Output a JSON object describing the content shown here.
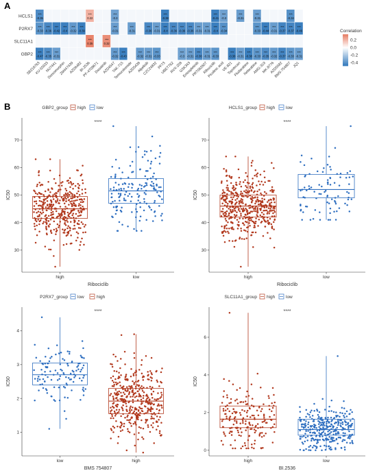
{
  "panel_a_label": "A",
  "panel_b_label": "B",
  "chart_data": [
    {
      "type": "heatmap",
      "rows": [
        "HCLS1",
        "P2RX7",
        "SLC11A1",
        "GBP2"
      ],
      "columns": [
        "SB216763",
        "KU-55933",
        "NU7441",
        "Dorsomorphin",
        "ZM447439",
        "AZD6482",
        "BI-2536",
        "PF-4708671",
        "Dasatinib",
        "AZD4547",
        "TAK-715",
        "Temozolomide",
        "AZD5438",
        "Alpelisib",
        "CZC24832",
        "PF73",
        "UBET762",
        "RVX-208",
        "GSK343",
        "Entospletinib",
        "PRT062607",
        "Ribociclib",
        "Picolinic acid",
        "VE-821",
        "Topotecan",
        "Fludarabine",
        "Nelarabine",
        "AMG-319",
        "MK-8776",
        "AZD5582",
        "BMS-754807",
        "JQ1"
      ],
      "values": [
        [
          -0.35,
          null,
          null,
          null,
          null,
          null,
          0.22,
          null,
          null,
          -0.3,
          null,
          null,
          null,
          null,
          null,
          -0.38,
          null,
          null,
          null,
          null,
          null,
          -0.41,
          -0.3,
          null,
          -0.31,
          null,
          -0.31,
          null,
          null,
          null,
          -0.34,
          null
        ],
        [
          -0.33,
          -0.36,
          -0.42,
          -0.4,
          -0.32,
          -0.39,
          null,
          null,
          null,
          -0.31,
          null,
          -0.31,
          null,
          -0.36,
          -0.31,
          -0.4,
          -0.36,
          -0.36,
          -0.36,
          -0.31,
          -0.31,
          -0.4,
          -0.34,
          null,
          null,
          null,
          -0.33,
          -0.44,
          -0.31,
          -0.37,
          -0.37,
          -0.46
        ],
        [
          null,
          null,
          null,
          null,
          null,
          null,
          0.35,
          null,
          0.32,
          null,
          null,
          null,
          null,
          null,
          null,
          null,
          null,
          null,
          null,
          null,
          null,
          null,
          null,
          null,
          null,
          null,
          null,
          null,
          null,
          null,
          null,
          null
        ],
        [
          -0.47,
          -0.35,
          -0.31,
          null,
          null,
          null,
          null,
          null,
          null,
          -0.32,
          -0.43,
          null,
          -0.32,
          -0.31,
          -0.33,
          null,
          null,
          -0.3,
          -0.31,
          -0.36,
          -0.31,
          -0.33,
          null,
          -0.38,
          -0.31,
          -0.38,
          -0.33,
          -0.35,
          -0.32,
          -0.37,
          -0.33,
          -0.31
        ]
      ],
      "significance_mark": "***",
      "legend_title": "Correlation",
      "legend_ticks": [
        "0.2",
        "0.0",
        "-0.2",
        "-0.4"
      ],
      "colors": {
        "positive": "#e8836b",
        "negative": "#3b7fbf",
        "zero": "#ffffff"
      }
    },
    {
      "type": "box",
      "legend_title": "GBP2_group",
      "legend_items": [
        "high",
        "low"
      ],
      "categories": [
        "high",
        "low"
      ],
      "xlabel": "Ribociclib",
      "ylabel": "IC50",
      "yticks": [
        30,
        40,
        50,
        60,
        70
      ],
      "ylim": [
        22,
        78
      ],
      "significance": "****",
      "boxes": [
        {
          "name": "high",
          "min": 24,
          "q1": 41.5,
          "median": 45,
          "q3": 49.5,
          "max": 63,
          "n": 420,
          "spread": 6
        },
        {
          "name": "low",
          "min": 37,
          "q1": 47,
          "median": 51.5,
          "q3": 56,
          "max": 75,
          "n": 170,
          "spread": 7
        }
      ]
    },
    {
      "type": "box",
      "legend_title": "HCLS1_group",
      "legend_items": [
        "high",
        "low"
      ],
      "categories": [
        "high",
        "low"
      ],
      "xlabel": "Ribociclib",
      "ylabel": "IC50",
      "yticks": [
        30,
        40,
        50,
        60,
        70
      ],
      "ylim": [
        22,
        78
      ],
      "significance": "****",
      "boxes": [
        {
          "name": "high",
          "min": 24,
          "q1": 42,
          "median": 46,
          "q3": 50,
          "max": 64,
          "n": 480,
          "spread": 6
        },
        {
          "name": "low",
          "min": 41,
          "q1": 49,
          "median": 52,
          "q3": 57.5,
          "max": 75,
          "n": 90,
          "spread": 6
        }
      ]
    },
    {
      "type": "box",
      "legend_title": "P2RX7_group",
      "legend_items": [
        "low",
        "high"
      ],
      "categories": [
        "low",
        "high"
      ],
      "xlabel": "BMS 754807",
      "ylabel": "IC50",
      "yticks": [
        1,
        2,
        3,
        4
      ],
      "ylim": [
        0.3,
        4.7
      ],
      "significance": "****",
      "boxes": [
        {
          "name": "low",
          "min": 1.1,
          "q1": 2.4,
          "median": 2.7,
          "q3": 3.05,
          "max": 4.4,
          "n": 120,
          "spread": 0.45
        },
        {
          "name": "high",
          "min": 0.4,
          "q1": 1.55,
          "median": 1.92,
          "q3": 2.3,
          "max": 3.9,
          "n": 420,
          "spread": 0.55
        }
      ]
    },
    {
      "type": "box",
      "legend_title": "SLC11A1_group",
      "legend_items": [
        "high",
        "low"
      ],
      "categories": [
        "high",
        "low"
      ],
      "xlabel": "BI.2536",
      "ylabel": "IC50",
      "yticks": [
        0,
        2,
        4,
        6
      ],
      "ylim": [
        -0.3,
        7.6
      ],
      "significance": "****",
      "boxes": [
        {
          "name": "high",
          "min": 0.1,
          "q1": 1.2,
          "median": 1.65,
          "q3": 2.35,
          "max": 7.3,
          "n": 190,
          "spread": 0.9
        },
        {
          "name": "low",
          "min": 0.0,
          "q1": 0.8,
          "median": 1.1,
          "q3": 1.65,
          "max": 5.0,
          "n": 330,
          "spread": 0.6
        }
      ]
    }
  ],
  "group_colors": {
    "high": "#b23a1f",
    "low": "#2f6fc0"
  },
  "box_fill": "#ffffff"
}
